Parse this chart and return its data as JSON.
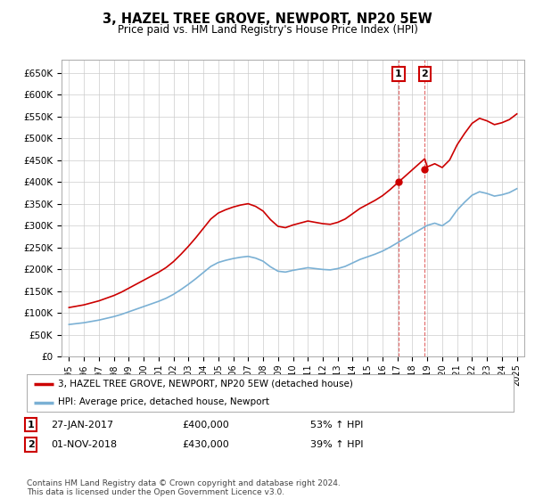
{
  "title": "3, HAZEL TREE GROVE, NEWPORT, NP20 5EW",
  "subtitle": "Price paid vs. HM Land Registry's House Price Index (HPI)",
  "ylim": [
    0,
    680000
  ],
  "yticks": [
    0,
    50000,
    100000,
    150000,
    200000,
    250000,
    300000,
    350000,
    400000,
    450000,
    500000,
    550000,
    600000,
    650000
  ],
  "ytick_labels": [
    "£0",
    "£50K",
    "£100K",
    "£150K",
    "£200K",
    "£250K",
    "£300K",
    "£350K",
    "£400K",
    "£450K",
    "£500K",
    "£550K",
    "£600K",
    "£650K"
  ],
  "xtick_years": [
    1995,
    1996,
    1997,
    1998,
    1999,
    2000,
    2001,
    2002,
    2003,
    2004,
    2005,
    2006,
    2007,
    2008,
    2009,
    2010,
    2011,
    2012,
    2013,
    2014,
    2015,
    2016,
    2017,
    2018,
    2019,
    2020,
    2021,
    2022,
    2023,
    2024,
    2025
  ],
  "line1_color": "#cc0000",
  "line2_color": "#7ab0d4",
  "legend_label1": "3, HAZEL TREE GROVE, NEWPORT, NP20 5EW (detached house)",
  "legend_label2": "HPI: Average price, detached house, Newport",
  "sale1_year": 2017.07,
  "sale1_price": 400000,
  "sale2_year": 2018.83,
  "sale2_price": 430000,
  "table_row1": [
    "1",
    "27-JAN-2017",
    "£400,000",
    "53% ↑ HPI"
  ],
  "table_row2": [
    "2",
    "01-NOV-2018",
    "£430,000",
    "39% ↑ HPI"
  ],
  "footer": "Contains HM Land Registry data © Crown copyright and database right 2024.\nThis data is licensed under the Open Government Licence v3.0.",
  "background_color": "#ffffff",
  "grid_color": "#cccccc",
  "hpi_years": [
    1995,
    1995.5,
    1996,
    1996.5,
    1997,
    1997.5,
    1998,
    1998.5,
    1999,
    1999.5,
    2000,
    2000.5,
    2001,
    2001.5,
    2002,
    2002.5,
    2003,
    2003.5,
    2004,
    2004.5,
    2005,
    2005.5,
    2006,
    2006.5,
    2007,
    2007.5,
    2008,
    2008.5,
    2009,
    2009.5,
    2010,
    2010.5,
    2011,
    2011.5,
    2012,
    2012.5,
    2013,
    2013.5,
    2014,
    2014.5,
    2015,
    2015.5,
    2016,
    2016.5,
    2017,
    2017.5,
    2018,
    2018.5,
    2019,
    2019.5,
    2020,
    2020.5,
    2021,
    2021.5,
    2022,
    2022.5,
    2023,
    2023.5,
    2024,
    2024.5,
    2025
  ],
  "hpi_values": [
    74000,
    76000,
    78000,
    81000,
    84000,
    88000,
    92000,
    97000,
    103000,
    109000,
    115000,
    121000,
    127000,
    134000,
    143000,
    154000,
    166000,
    179000,
    193000,
    207000,
    216000,
    221000,
    225000,
    228000,
    230000,
    226000,
    219000,
    206000,
    196000,
    194000,
    198000,
    201000,
    204000,
    202000,
    200000,
    199000,
    202000,
    207000,
    215000,
    223000,
    229000,
    235000,
    242000,
    251000,
    261000,
    271000,
    281000,
    291000,
    301000,
    306000,
    300000,
    312000,
    336000,
    354000,
    370000,
    378000,
    374000,
    368000,
    371000,
    376000,
    385000
  ]
}
